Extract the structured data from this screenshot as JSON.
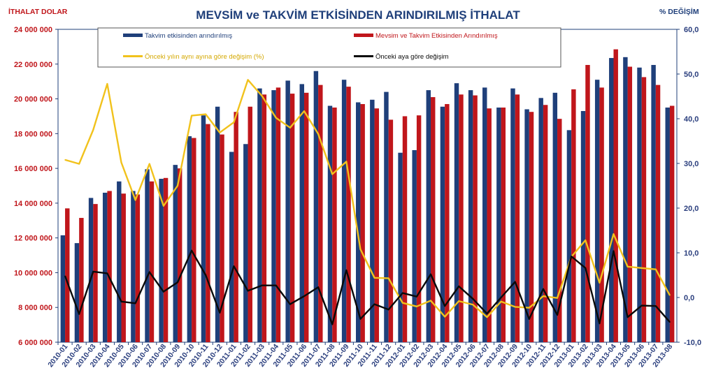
{
  "chart_data": {
    "type": "bar",
    "title": "MEVSİM ve TAKVİM ETKİSİNDEN ARINDIRILMIŞ İTHALAT",
    "ylabel": "İTHALAT DOLAR",
    "y2label": "% DEĞİŞİM",
    "ylim": [
      6000000,
      24000000
    ],
    "y2lim": [
      -10,
      60
    ],
    "yticks": [
      "24 000 000",
      "22 000 000",
      "20 000 000",
      "18 000 000",
      "16 000 000",
      "14 000 000",
      "12 000 000",
      "10 000 000",
      "8 000 000",
      "6 000 000"
    ],
    "y2ticks": [
      "60,0",
      "50,0",
      "40,0",
      "30,0",
      "20,0",
      "10,0",
      "0,0",
      "-10,0"
    ],
    "categories": [
      "2010-01",
      "2010-02",
      "2010-03",
      "2010-04",
      "2010-05",
      "2010-06",
      "2010-07",
      "2010-08",
      "2010-09",
      "2010-10",
      "2010-11",
      "2010-12",
      "2011-01",
      "2011-02",
      "2011-03",
      "2011-04",
      "2011-05",
      "2011-06",
      "2011-07",
      "2011-08",
      "2011-09",
      "2011-10",
      "2011-11",
      "2011-12",
      "2012-01",
      "2012-02",
      "2012-03",
      "2012-04",
      "2012-05",
      "2012-06",
      "2012-07",
      "2012-08",
      "2012-09",
      "2012-10",
      "2012-11",
      "2012-12",
      "2013-01",
      "2013-02",
      "2013-03",
      "2013-04",
      "2013-05",
      "2013-06",
      "2013-07",
      "2013-08"
    ],
    "legend_position": "top",
    "grid": false,
    "series": [
      {
        "name": "Takvim etkisinden arındırılmış",
        "axis": "left",
        "kind": "bar",
        "color": "#1f3f7a",
        "values": [
          12150000,
          11700000,
          14300000,
          14600000,
          15250000,
          14700000,
          15950000,
          15400000,
          16200000,
          17850000,
          19050000,
          19550000,
          16950000,
          17400000,
          20600000,
          20500000,
          21050000,
          20850000,
          21600000,
          19600000,
          21100000,
          19800000,
          19950000,
          20400000,
          16900000,
          17050000,
          20500000,
          19550000,
          20900000,
          20500000,
          20650000,
          19500000,
          20600000,
          19400000,
          20050000,
          20350000,
          18200000,
          19300000,
          21100000,
          22350000,
          22400000,
          21800000,
          21950000,
          19500000
        ]
      },
      {
        "name": "Mevsim ve Takvim Etkisinden Arındırılmış",
        "axis": "left",
        "kind": "bar",
        "color": "#c0161b",
        "values": [
          13700000,
          13150000,
          13950000,
          14700000,
          14550000,
          14500000,
          15250000,
          15450000,
          16000000,
          17750000,
          18550000,
          17950000,
          19250000,
          19550000,
          20250000,
          20650000,
          20300000,
          20350000,
          20800000,
          19500000,
          20700000,
          19700000,
          19450000,
          18800000,
          19000000,
          19050000,
          20100000,
          19700000,
          20250000,
          20200000,
          19450000,
          19500000,
          20250000,
          19250000,
          19650000,
          18850000,
          20550000,
          21950000,
          20650000,
          22850000,
          21850000,
          21250000,
          20800000,
          19600000
        ]
      },
      {
        "name": "Önceki yılın aynı ayına göre değişim (%)",
        "axis": "right",
        "kind": "line",
        "color": "#f1c21c",
        "values": [
          30.8,
          29.9,
          37.5,
          47.8,
          30.2,
          21.8,
          29.9,
          20.5,
          25.0,
          40.7,
          41.0,
          36.9,
          39.2,
          48.7,
          45.1,
          40.2,
          38.0,
          41.7,
          36.6,
          27.6,
          30.4,
          10.8,
          4.4,
          4.3,
          -1.2,
          -2.0,
          -0.7,
          -4.3,
          -0.8,
          -1.6,
          -4.4,
          -0.9,
          -2.1,
          -2.3,
          0.3,
          -0.1,
          9.1,
          12.8,
          3.3,
          14.2,
          6.9,
          6.6,
          6.3,
          0.5
        ]
      },
      {
        "name": "Önceki aya göre değişim",
        "axis": "right",
        "kind": "line",
        "color": "#0a0a0a",
        "values": [
          4.8,
          -3.7,
          5.8,
          5.4,
          -0.9,
          -1.3,
          5.7,
          1.3,
          3.4,
          10.5,
          5.0,
          -3.4,
          7.0,
          1.5,
          2.7,
          2.7,
          -1.5,
          0.3,
          2.3,
          -6.0,
          6.1,
          -4.8,
          -1.5,
          -2.7,
          1.0,
          0.2,
          5.2,
          -1.9,
          2.5,
          -0.3,
          -3.6,
          0.0,
          3.5,
          -4.8,
          1.9,
          -3.9,
          9.2,
          6.6,
          -5.8,
          10.4,
          -4.4,
          -1.8,
          -1.9,
          -5.5
        ]
      }
    ]
  }
}
